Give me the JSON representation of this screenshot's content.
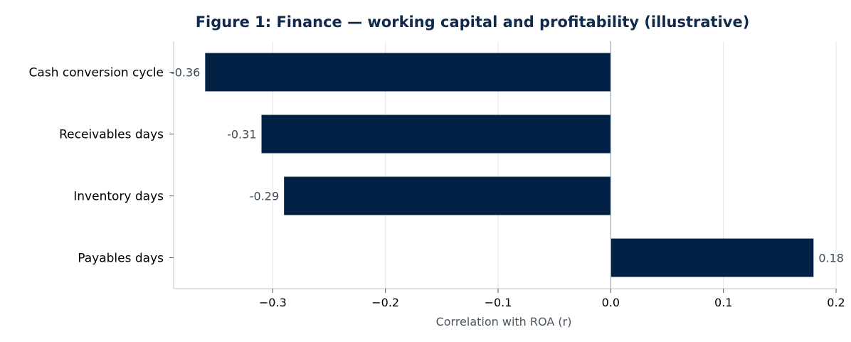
{
  "chart_data": {
    "type": "bar",
    "orientation": "horizontal",
    "title": "Figure 1: Finance — working capital and profitability (illustrative)",
    "xlabel": "Correlation with ROA (r)",
    "ylabel": "",
    "categories": [
      "Cash conversion cycle",
      "Receivables days",
      "Inventory days",
      "Payables days"
    ],
    "values": [
      -0.36,
      -0.31,
      -0.29,
      0.18
    ],
    "data_labels": [
      "-0.36",
      "-0.31",
      "-0.29",
      "0.18"
    ],
    "xlim": [
      -0.388,
      0.2
    ],
    "xticks": [
      -0.3,
      -0.2,
      -0.1,
      0.0,
      0.1,
      0.2
    ],
    "xtick_labels": [
      "−0.3",
      "−0.2",
      "−0.1",
      "0.0",
      "0.1",
      "0.2"
    ],
    "grid": "vertical",
    "colors": {
      "bar": "#032045",
      "title": "#0f2a4a",
      "grid": "#e3e7ea",
      "frame": "#c9d0d6",
      "zero_line": "#9aabb8",
      "data_label": "#3d4a57",
      "axis_label": "#4a5663"
    }
  }
}
